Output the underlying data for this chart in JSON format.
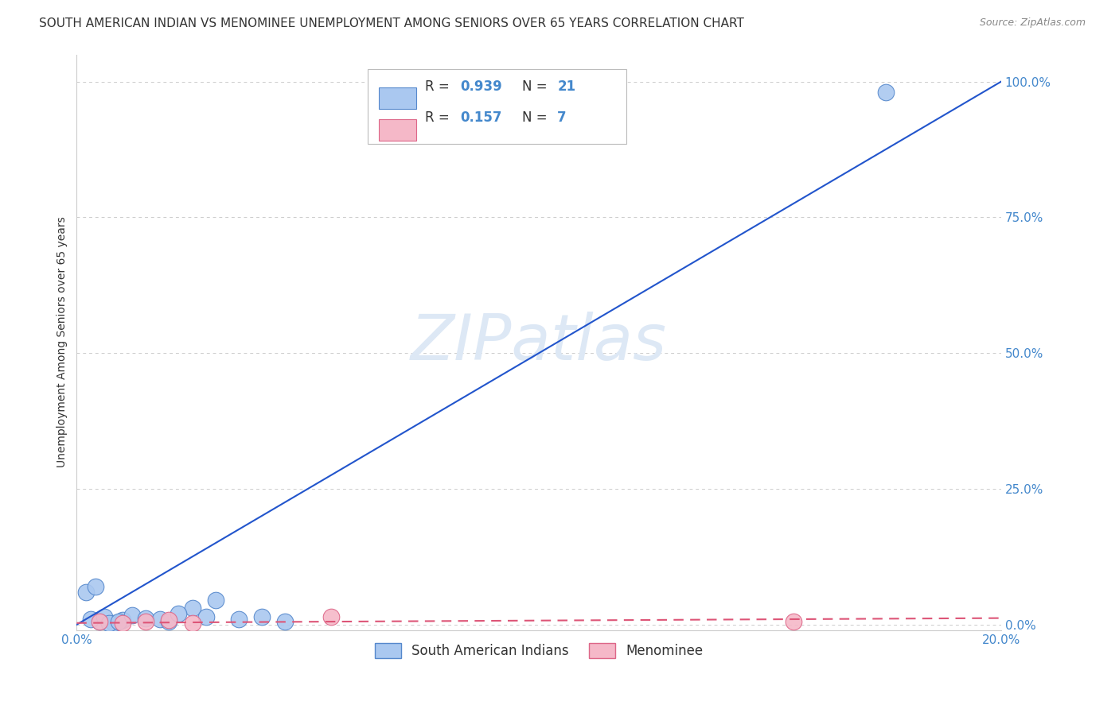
{
  "title": "SOUTH AMERICAN INDIAN VS MENOMINEE UNEMPLOYMENT AMONG SENIORS OVER 65 YEARS CORRELATION CHART",
  "source": "Source: ZipAtlas.com",
  "ylabel": "Unemployment Among Seniors over 65 years",
  "xlim": [
    0.0,
    20.0
  ],
  "ylim": [
    -1.0,
    105.0
  ],
  "yticks": [
    0.0,
    25.0,
    50.0,
    75.0,
    100.0
  ],
  "ytick_labels": [
    "0.0%",
    "25.0%",
    "50.0%",
    "75.0%",
    "100.0%"
  ],
  "xticks": [
    0.0,
    5.0,
    10.0,
    15.0,
    20.0
  ],
  "xtick_labels": [
    "0.0%",
    "",
    "",
    "",
    "20.0%"
  ],
  "blue_scatter_x": [
    0.5,
    0.8,
    1.0,
    0.3,
    0.6,
    0.7,
    0.9,
    1.2,
    1.5,
    1.8,
    2.0,
    2.5,
    3.0,
    3.5,
    4.0,
    4.5,
    0.2,
    0.4,
    2.2,
    2.8,
    17.5
  ],
  "blue_scatter_y": [
    0.5,
    0.3,
    0.8,
    1.0,
    1.5,
    0.2,
    0.5,
    1.8,
    1.2,
    1.0,
    0.5,
    3.0,
    4.5,
    1.0,
    1.5,
    0.5,
    6.0,
    7.0,
    2.0,
    1.5,
    98.0
  ],
  "blue_R": 0.939,
  "blue_N": 21,
  "blue_line_x": [
    0.0,
    20.0
  ],
  "blue_line_y": [
    0.0,
    100.0
  ],
  "pink_scatter_x": [
    0.5,
    1.0,
    1.5,
    2.0,
    2.5,
    5.5,
    15.5
  ],
  "pink_scatter_y": [
    0.5,
    0.3,
    0.5,
    0.8,
    0.3,
    1.5,
    0.5
  ],
  "pink_R": 0.157,
  "pink_N": 7,
  "pink_line_x": [
    0.0,
    20.0
  ],
  "pink_line_y": [
    0.3,
    1.2
  ],
  "scatter_blue_color": "#aac8f0",
  "scatter_blue_edge": "#5588cc",
  "scatter_pink_color": "#f5b8c8",
  "scatter_pink_edge": "#dd6688",
  "line_blue_color": "#2255cc",
  "line_pink_color": "#dd5577",
  "watermark_color": "#dde8f5",
  "title_color": "#333333",
  "source_color": "#888888",
  "ylabel_color": "#333333",
  "tick_color": "#4488cc",
  "grid_color": "#cccccc",
  "background_color": "#ffffff",
  "legend_blue_label1": "R = ",
  "legend_blue_R": "0.939",
  "legend_blue_N_label": "N = ",
  "legend_blue_N": "21",
  "legend_pink_label1": "R = ",
  "legend_pink_R": "0.157",
  "legend_pink_N_label": "N = ",
  "legend_pink_N": "7"
}
